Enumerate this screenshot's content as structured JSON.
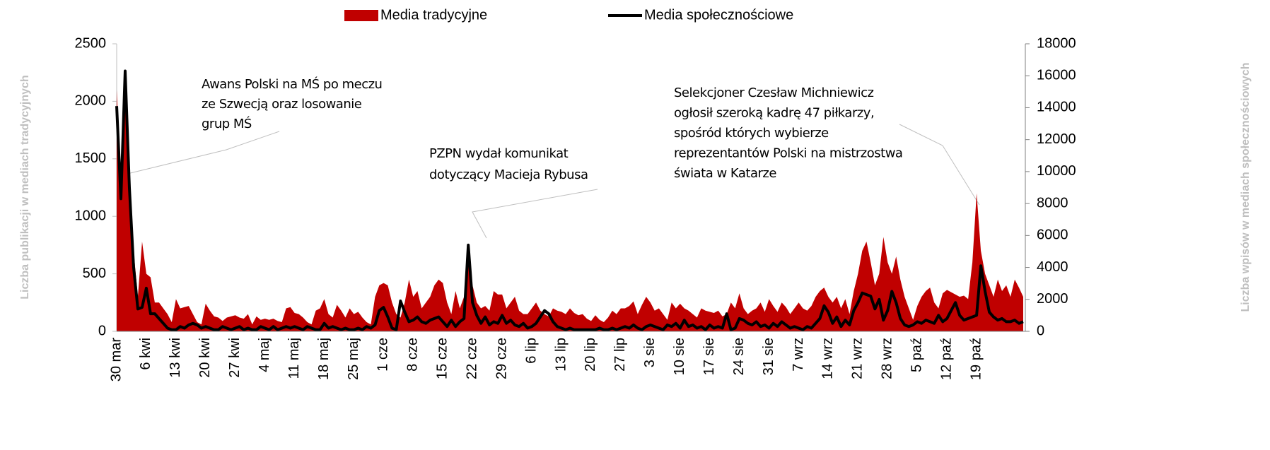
{
  "chart_data": {
    "type": "area-line",
    "ylabel": "Liczba publikacji w mediach tradycyjnych",
    "y2label": "Liczba wpisów w mediach społecznościowych",
    "legend": "top",
    "ylim": [
      0,
      2500
    ],
    "yticks": [
      0,
      500,
      1000,
      1500,
      2000,
      2500
    ],
    "y2lim": [
      0,
      18000
    ],
    "y2ticks": [
      0,
      2000,
      4000,
      6000,
      8000,
      10000,
      12000,
      14000,
      16000,
      18000
    ],
    "categories": [
      "30 mar",
      null,
      null,
      null,
      null,
      null,
      null,
      "6 kwi",
      null,
      null,
      null,
      null,
      null,
      null,
      "13 kwi",
      null,
      null,
      null,
      null,
      null,
      null,
      "20 kwi",
      null,
      null,
      null,
      null,
      null,
      null,
      "27 kwi",
      null,
      null,
      null,
      null,
      null,
      null,
      "4 maj",
      null,
      null,
      null,
      null,
      null,
      null,
      "11 maj",
      null,
      null,
      null,
      null,
      null,
      null,
      "18 maj",
      null,
      null,
      null,
      null,
      null,
      null,
      "25 maj",
      null,
      null,
      null,
      null,
      null,
      null,
      "1 cze",
      null,
      null,
      null,
      null,
      null,
      null,
      "8 cze",
      null,
      null,
      null,
      null,
      null,
      null,
      "15 cze",
      null,
      null,
      null,
      null,
      null,
      null,
      "22 cze",
      null,
      null,
      null,
      null,
      null,
      null,
      "29 cze",
      null,
      null,
      null,
      null,
      null,
      null,
      "6 lip",
      null,
      null,
      null,
      null,
      null,
      null,
      "13 lip",
      null,
      null,
      null,
      null,
      null,
      null,
      "20 lip",
      null,
      null,
      null,
      null,
      null,
      null,
      "27 lip",
      null,
      null,
      null,
      null,
      null,
      null,
      "3 sie",
      null,
      null,
      null,
      null,
      null,
      null,
      "10 sie",
      null,
      null,
      null,
      null,
      null,
      null,
      "17 sie",
      null,
      null,
      null,
      null,
      null,
      null,
      "24 sie",
      null,
      null,
      null,
      null,
      null,
      null,
      "31 sie",
      null,
      null,
      null,
      null,
      null,
      null,
      "7 wrz",
      null,
      null,
      null,
      null,
      null,
      null,
      "14 wrz",
      null,
      null,
      null,
      null,
      null,
      null,
      "21 wrz",
      null,
      null,
      null,
      null,
      null,
      null,
      "28 wrz",
      null,
      null,
      null,
      null,
      null,
      null,
      "5 paź",
      null,
      null,
      null,
      null,
      null,
      null,
      "12 paź",
      null,
      null,
      null,
      null,
      null,
      null,
      "19 paź",
      null,
      null,
      null,
      null,
      null,
      null,
      null,
      null,
      null,
      null,
      null
    ],
    "series": [
      {
        "name": "Media tradycyjne",
        "color": "#c00000",
        "kind": "area",
        "values": [
          2100,
          1300,
          2050,
          1300,
          700,
          300,
          780,
          500,
          470,
          250,
          250,
          200,
          150,
          80,
          280,
          200,
          210,
          220,
          150,
          80,
          60,
          240,
          180,
          130,
          120,
          90,
          120,
          130,
          140,
          120,
          110,
          150,
          60,
          130,
          100,
          110,
          100,
          110,
          90,
          80,
          200,
          210,
          160,
          150,
          120,
          80,
          60,
          180,
          200,
          280,
          150,
          120,
          230,
          180,
          120,
          200,
          150,
          170,
          120,
          80,
          60,
          300,
          400,
          420,
          400,
          250,
          150,
          120,
          250,
          450,
          300,
          350,
          200,
          250,
          300,
          400,
          450,
          420,
          250,
          150,
          350,
          200,
          300,
          600,
          400,
          250,
          200,
          220,
          180,
          350,
          320,
          320,
          200,
          250,
          300,
          180,
          150,
          150,
          200,
          250,
          180,
          150,
          130,
          200,
          180,
          170,
          150,
          200,
          160,
          140,
          150,
          110,
          90,
          140,
          100,
          80,
          120,
          180,
          150,
          200,
          200,
          220,
          260,
          150,
          230,
          300,
          250,
          180,
          200,
          150,
          100,
          250,
          200,
          240,
          200,
          180,
          150,
          120,
          200,
          180,
          170,
          160,
          180,
          130,
          150,
          250,
          200,
          330,
          200,
          150,
          180,
          200,
          250,
          170,
          280,
          220,
          170,
          250,
          210,
          150,
          200,
          250,
          200,
          180,
          220,
          300,
          350,
          380,
          300,
          250,
          300,
          200,
          280,
          150,
          350,
          500,
          700,
          780,
          600,
          400,
          500,
          820,
          600,
          500,
          650,
          450,
          300,
          200,
          100,
          220,
          300,
          350,
          380,
          250,
          200,
          330,
          360,
          340,
          320,
          300,
          310,
          280,
          600,
          1200,
          700,
          500,
          400,
          300,
          450,
          350,
          400,
          300,
          450,
          380,
          300
        ]
      },
      {
        "name": "Media społecznościowe",
        "color": "#000000",
        "kind": "line",
        "axis": "y2",
        "values": [
          14100,
          8300,
          16300,
          9000,
          4000,
          1400,
          1500,
          2700,
          1100,
          1100,
          800,
          500,
          200,
          100,
          100,
          300,
          200,
          400,
          500,
          400,
          200,
          300,
          200,
          100,
          100,
          300,
          200,
          100,
          200,
          300,
          100,
          200,
          100,
          100,
          300,
          200,
          100,
          300,
          100,
          200,
          300,
          200,
          300,
          200,
          100,
          300,
          200,
          100,
          100,
          500,
          200,
          300,
          200,
          100,
          200,
          100,
          100,
          200,
          100,
          300,
          200,
          400,
          1300,
          1500,
          900,
          200,
          100,
          1900,
          1200,
          600,
          700,
          900,
          600,
          500,
          700,
          800,
          900,
          600,
          300,
          700,
          300,
          600,
          800,
          5400,
          1800,
          1000,
          500,
          900,
          400,
          600,
          500,
          1000,
          500,
          700,
          400,
          300,
          500,
          200,
          300,
          500,
          900,
          1300,
          1100,
          600,
          300,
          200,
          100,
          200,
          100,
          100,
          100,
          100,
          100,
          100,
          200,
          100,
          100,
          200,
          100,
          200,
          300,
          200,
          400,
          200,
          100,
          300,
          400,
          300,
          200,
          100,
          400,
          300,
          500,
          200,
          700,
          300,
          400,
          200,
          300,
          100,
          400,
          200,
          300,
          200,
          1100,
          100,
          200,
          800,
          700,
          500,
          400,
          600,
          300,
          400,
          200,
          500,
          300,
          600,
          400,
          200,
          300,
          200,
          100,
          300,
          200,
          500,
          800,
          1600,
          1200,
          500,
          900,
          300,
          700,
          400,
          1300,
          1800,
          2400,
          2300,
          2200,
          1400,
          2000,
          700,
          1300,
          2500,
          1800,
          800,
          400,
          300,
          400,
          600,
          500,
          700,
          600,
          500,
          1000,
          600,
          800,
          1300,
          1800,
          1000,
          700,
          800,
          900,
          1000,
          4100,
          2500,
          1200,
          900,
          700,
          800,
          600,
          600,
          700,
          500,
          600
        ]
      }
    ],
    "annotations": [
      {
        "lines": [
          "Awans Polski na MŚ po meczu",
          "ze Szwecją oraz losowanie",
          "grup MŚ"
        ]
      },
      {
        "lines": [
          "PZPN wydał komunikat",
          "dotyczący Macieja Rybusa"
        ]
      },
      {
        "lines": [
          "Selekcjoner Czesław Michniewicz",
          "ogłosił szeroką kadrę 47 piłkarzy,",
          "spośród których wybierze",
          "reprezentantów  Polski na mistrzostwa",
          "świata w Katarze"
        ]
      }
    ]
  }
}
